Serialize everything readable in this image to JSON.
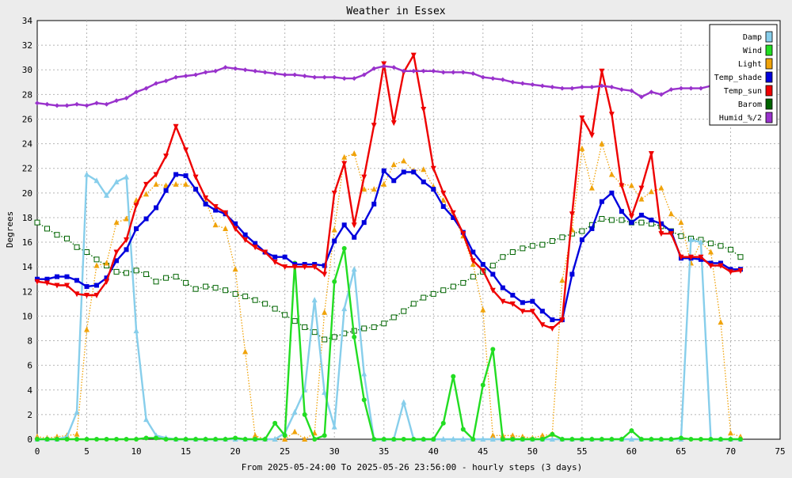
{
  "chart_data": {
    "type": "line",
    "title": "Weather in Essex",
    "xlabel": "From 2025-05-24:00 To 2025-05-26 23:56:00 - hourly steps (3 days)",
    "ylabel": "Degrees",
    "xlim": [
      0,
      75
    ],
    "ylim": [
      0,
      34
    ],
    "x_ticks": [
      0,
      5,
      10,
      15,
      20,
      25,
      30,
      35,
      40,
      45,
      50,
      55,
      60,
      65,
      70,
      75
    ],
    "y_ticks": [
      0,
      2,
      4,
      6,
      8,
      10,
      12,
      14,
      16,
      18,
      20,
      22,
      24,
      26,
      28,
      30,
      32,
      34
    ],
    "grid": true,
    "legend_position": "top-right",
    "x": [
      0,
      1,
      2,
      3,
      4,
      5,
      6,
      7,
      8,
      9,
      10,
      11,
      12,
      13,
      14,
      15,
      16,
      17,
      18,
      19,
      20,
      21,
      22,
      23,
      24,
      25,
      26,
      27,
      28,
      29,
      30,
      31,
      32,
      33,
      34,
      35,
      36,
      37,
      38,
      39,
      40,
      41,
      42,
      43,
      44,
      45,
      46,
      47,
      48,
      49,
      50,
      51,
      52,
      53,
      54,
      55,
      56,
      57,
      58,
      59,
      60,
      61,
      62,
      63,
      64,
      65,
      66,
      67,
      68,
      69,
      70,
      71
    ],
    "series": [
      {
        "name": "Damp",
        "color": "#87ceeb",
        "style": "solid",
        "marker": "triangle",
        "values": [
          0,
          0,
          0,
          0.2,
          2.2,
          21.5,
          21,
          19.8,
          20.9,
          21.3,
          8.8,
          1.6,
          0.3,
          0.1,
          0,
          0,
          0,
          0,
          0,
          0,
          0,
          0,
          0,
          0,
          0,
          0.5,
          2.2,
          4,
          11.3,
          3.8,
          1,
          10.6,
          13.8,
          5.3,
          0,
          0,
          0,
          3,
          0,
          0,
          0,
          0,
          0,
          0,
          0,
          0,
          0,
          0,
          0,
          0,
          0,
          0,
          0,
          0,
          0,
          0,
          0,
          0,
          0,
          0,
          0,
          0,
          0,
          0,
          0,
          0,
          16.2,
          16,
          0,
          0,
          0,
          0
        ]
      },
      {
        "name": "Wind",
        "color": "#22dd22",
        "style": "solid",
        "marker": "circle",
        "values": [
          0,
          0,
          0,
          0,
          0,
          0,
          0,
          0,
          0,
          0,
          0,
          0.1,
          0.1,
          0,
          0,
          0,
          0,
          0,
          0,
          0,
          0.1,
          0,
          0,
          0,
          1.3,
          0.3,
          14.3,
          2,
          0,
          0.3,
          12.8,
          15.5,
          8.3,
          3.2,
          0,
          0,
          0,
          0,
          0,
          0,
          0,
          1.3,
          5.1,
          0.8,
          0,
          4.4,
          7.3,
          0,
          0,
          0,
          0,
          0,
          0.4,
          0,
          0,
          0,
          0,
          0,
          0,
          0,
          0.7,
          0,
          0,
          0,
          0,
          0.1,
          0,
          0,
          0,
          0,
          0,
          0
        ]
      },
      {
        "name": "Light",
        "color": "#f0a30a",
        "style": "dotted",
        "marker": "triangle",
        "values": [
          0.2,
          0.1,
          0.2,
          0.3,
          0.4,
          8.9,
          14.1,
          14.3,
          17.6,
          17.9,
          19.4,
          19.9,
          20.7,
          20.6,
          20.7,
          20.7,
          20.3,
          19.3,
          17.4,
          17.1,
          13.8,
          7.1,
          0.3,
          0,
          0,
          0,
          0.6,
          0,
          0.5,
          10.3,
          17,
          22.9,
          23.2,
          20.3,
          20.3,
          20.7,
          22.3,
          22.6,
          21.8,
          21.9,
          20.5,
          19.4,
          18.1,
          16.5,
          14.2,
          10.5,
          0.3,
          0.3,
          0.3,
          0.2,
          0.1,
          0.3,
          0.4,
          12.9,
          17,
          23.6,
          20.4,
          24,
          21.5,
          20.7,
          20.6,
          19.5,
          20.1,
          20.4,
          18.3,
          17.6,
          14.3,
          16,
          15.2,
          9.5,
          0.5,
          0.2
        ]
      },
      {
        "name": "Temp_shade",
        "color": "#0000dd",
        "style": "solid",
        "marker": "square",
        "values": [
          13,
          13,
          13.2,
          13.2,
          12.9,
          12.4,
          12.5,
          13.1,
          14.5,
          15.4,
          17.1,
          17.9,
          18.8,
          20.2,
          21.5,
          21.4,
          20.3,
          19.1,
          18.6,
          18.3,
          17.5,
          16.6,
          15.9,
          15.2,
          14.8,
          14.8,
          14.2,
          14.2,
          14.2,
          14.1,
          16.1,
          17.4,
          16.4,
          17.6,
          19.1,
          21.8,
          21,
          21.7,
          21.7,
          20.9,
          20.3,
          18.9,
          18,
          16.8,
          15.2,
          14.2,
          13.4,
          12.3,
          11.7,
          11.1,
          11.2,
          10.4,
          9.7,
          9.7,
          13.4,
          16.2,
          17.1,
          19.3,
          20,
          18.5,
          17.6,
          18.2,
          17.8,
          17.5,
          16.9,
          14.7,
          14.7,
          14.6,
          14.3,
          14.3,
          13.8,
          13.8
        ]
      },
      {
        "name": "Temp_sun",
        "color": "#ee0000",
        "style": "solid",
        "marker": "triangle-down",
        "values": [
          12.8,
          12.7,
          12.5,
          12.5,
          11.8,
          11.7,
          11.7,
          12.8,
          15.2,
          16.2,
          19,
          20.7,
          21.5,
          23,
          25.4,
          23.5,
          21.3,
          19.6,
          18.9,
          18.4,
          17.1,
          16.2,
          15.6,
          15.2,
          14.4,
          14,
          14,
          14,
          14,
          13.4,
          20,
          22.4,
          17.4,
          21.3,
          25.5,
          30.5,
          25.7,
          29.8,
          31.2,
          26.8,
          22,
          20,
          18.4,
          16.7,
          14.5,
          13.7,
          12.1,
          11.2,
          11,
          10.4,
          10.4,
          9.3,
          9,
          9.7,
          18.3,
          26.1,
          24.7,
          29.9,
          26.4,
          20.6,
          18.1,
          20.4,
          23.2,
          16.7,
          16.7,
          14.8,
          14.8,
          14.8,
          14.1,
          14.1,
          13.6,
          13.7
        ]
      },
      {
        "name": "Barom",
        "color": "#006400",
        "style": "dotted",
        "marker": "open-square",
        "values": [
          17.6,
          17.1,
          16.6,
          16.3,
          15.6,
          15.2,
          14.6,
          14.1,
          13.6,
          13.5,
          13.7,
          13.4,
          12.8,
          13.1,
          13.2,
          12.7,
          12.2,
          12.4,
          12.3,
          12.1,
          11.8,
          11.6,
          11.3,
          11,
          10.6,
          10.1,
          9.6,
          9.1,
          8.7,
          8.1,
          8.3,
          8.6,
          8.8,
          9,
          9.1,
          9.4,
          9.9,
          10.4,
          11,
          11.5,
          11.8,
          12.1,
          12.4,
          12.7,
          13.2,
          13.6,
          14.1,
          14.8,
          15.2,
          15.5,
          15.7,
          15.8,
          16.1,
          16.4,
          16.7,
          16.9,
          17.4,
          17.9,
          17.8,
          17.8,
          17.6,
          17.6,
          17.5,
          17.3,
          16.9,
          16.5,
          16.3,
          16.2,
          15.9,
          15.7,
          15.4,
          14.8
        ]
      },
      {
        "name": "Humid_%/2",
        "color": "#9932cc",
        "style": "solid",
        "marker": "diamond",
        "values": [
          27.3,
          27.2,
          27.1,
          27.1,
          27.2,
          27.1,
          27.3,
          27.2,
          27.5,
          27.7,
          28.2,
          28.5,
          28.9,
          29.1,
          29.4,
          29.5,
          29.6,
          29.8,
          29.9,
          30.2,
          30.1,
          30.0,
          29.9,
          29.8,
          29.7,
          29.6,
          29.6,
          29.5,
          29.4,
          29.4,
          29.4,
          29.3,
          29.3,
          29.6,
          30.1,
          30.3,
          30.2,
          29.9,
          29.9,
          29.9,
          29.9,
          29.8,
          29.8,
          29.8,
          29.7,
          29.4,
          29.3,
          29.2,
          29.0,
          28.9,
          28.8,
          28.7,
          28.6,
          28.5,
          28.5,
          28.6,
          28.6,
          28.7,
          28.6,
          28.4,
          28.3,
          27.8,
          28.2,
          28.0,
          28.4,
          28.5,
          28.5,
          28.5,
          28.7,
          28.7,
          28.8,
          28.9
        ]
      }
    ]
  }
}
